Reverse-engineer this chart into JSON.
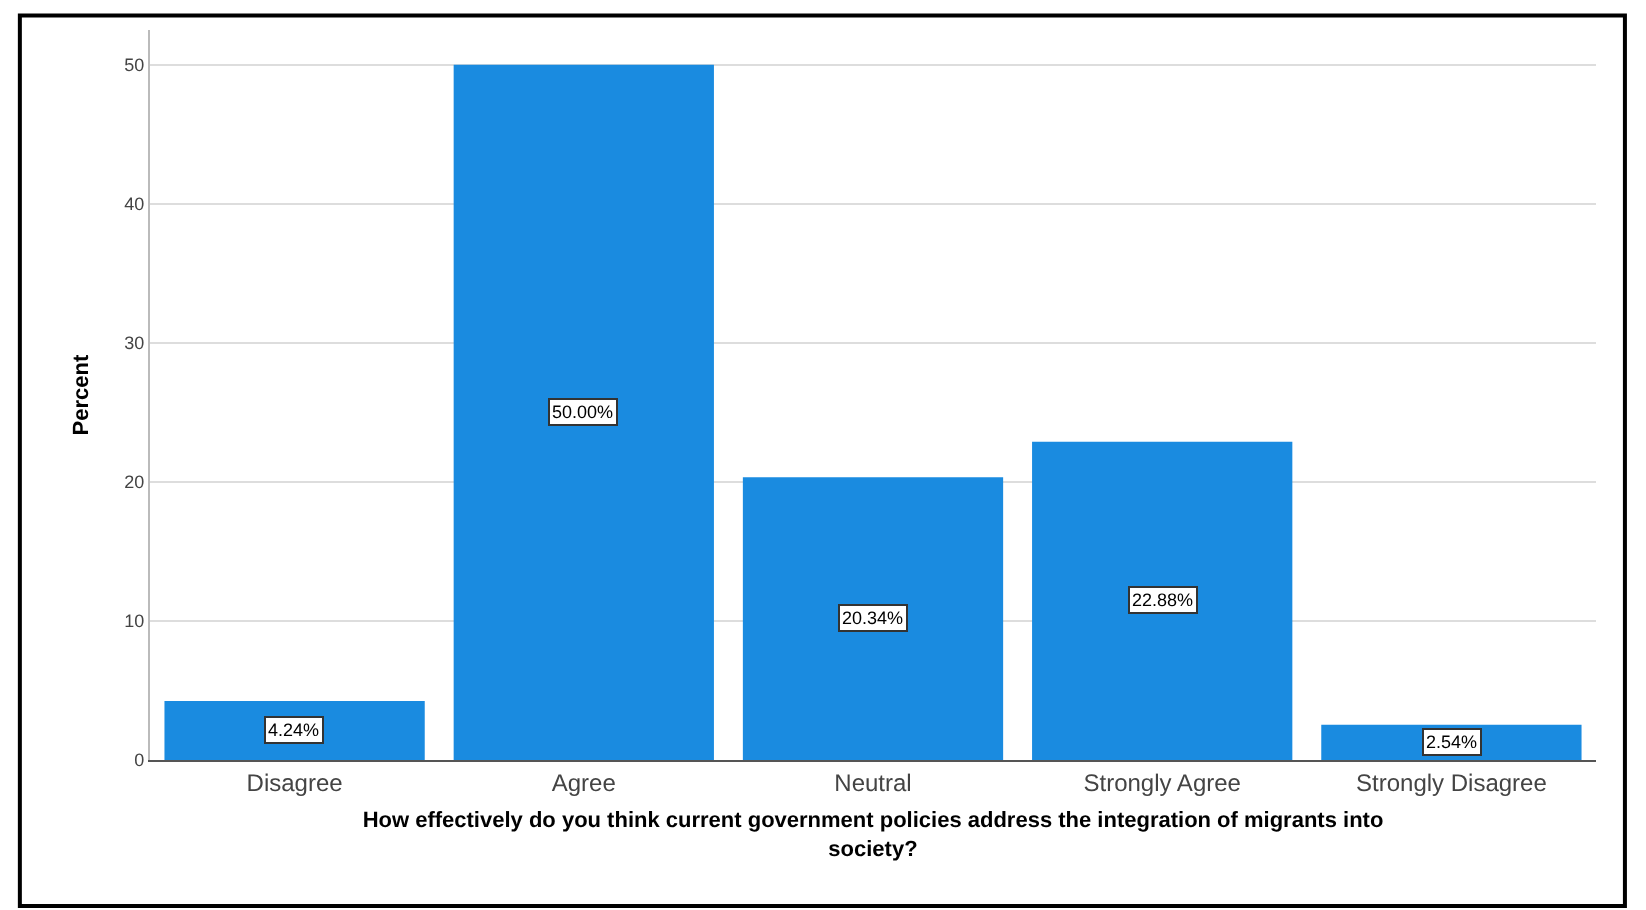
{
  "chart_data": {
    "type": "bar",
    "xlabel": "How effectively do you think current government policies address the integration of migrants into society?",
    "ylabel": "Percent",
    "categories": [
      "Disagree",
      "Agree",
      "Neutral",
      "Strongly Agree",
      "Strongly Disagree"
    ],
    "values": [
      4.24,
      50.0,
      20.34,
      22.88,
      2.54
    ],
    "value_labels": [
      "4.24%",
      "50.00%",
      "20.34%",
      "22.88%",
      "2.54%"
    ],
    "color": "#1a8be0",
    "ylim": [
      0,
      52.5
    ],
    "yticks": [
      0,
      10,
      20,
      30,
      40,
      50
    ],
    "grid": "y"
  }
}
